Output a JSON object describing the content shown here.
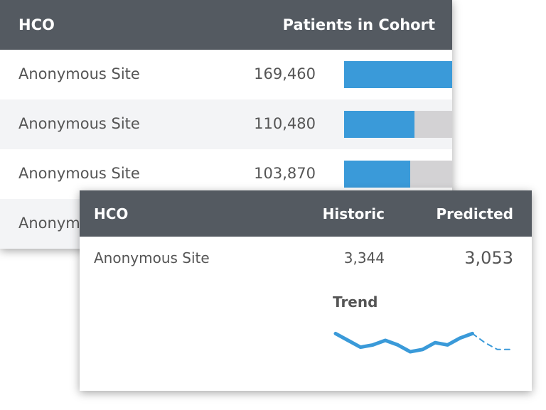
{
  "back_table": {
    "columns": [
      "HCO",
      "Patients in Cohort"
    ],
    "rows": [
      {
        "site": "Anonymous Site",
        "patients": {
          "value": 169460,
          "label": "169,460"
        }
      },
      {
        "site": "Anonymous Site",
        "patients": {
          "value": 110480,
          "label": "110,480"
        }
      },
      {
        "site": "Anonymous Site",
        "patients": {
          "value": 103870,
          "label": "103,870"
        }
      },
      {
        "site": "Anonymous Site"
      }
    ]
  },
  "front_card": {
    "columns": [
      "HCO",
      "Historic",
      "Predicted"
    ],
    "row": {
      "site": "Anonymous Site",
      "historic": "3,344",
      "predicted": "3,053"
    },
    "trend": {
      "label": "Trend",
      "color": "#3a9ad9",
      "historic": [
        8,
        5,
        2,
        3,
        5,
        3,
        0,
        1,
        4,
        3,
        6,
        8
      ],
      "predicted": [
        8,
        4,
        1,
        1
      ]
    }
  }
}
